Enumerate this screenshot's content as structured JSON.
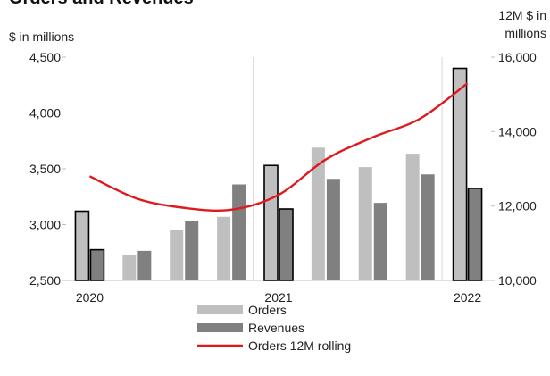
{
  "chart_data": {
    "type": "bar",
    "title": "Orders and Revenues",
    "left_axis_unit": "$ in millions",
    "right_axis_unit_lines": [
      "12M $ in",
      "millions"
    ],
    "ylim": [
      2500,
      4500
    ],
    "yticks": [
      "2,500",
      "3,000",
      "3,500",
      "4,000",
      "4,500"
    ],
    "yticks_values": [
      2500,
      3000,
      3500,
      4000,
      4500
    ],
    "y2lim": [
      10000,
      16000
    ],
    "y2ticks": [
      "10,000",
      "12,000",
      "14,000",
      "16,000"
    ],
    "y2ticks_values": [
      10000,
      12000,
      14000,
      16000
    ],
    "categories": [
      "Q1 2020",
      "Q2 2020",
      "Q3 2020",
      "Q4 2020",
      "Q1 2021",
      "Q2 2021",
      "Q3 2021",
      "Q4 2021",
      "Q1 2022"
    ],
    "xtick_labels": [
      {
        "text": "2020",
        "at": 0
      },
      {
        "text": "2021",
        "at": 4
      },
      {
        "text": "2022",
        "at": 8
      }
    ],
    "highlighted_quarters": [
      0,
      4,
      8
    ],
    "series": [
      {
        "name": "Orders",
        "type": "bar",
        "axis": "left",
        "color": "#bfbfbf",
        "values": [
          3120,
          2730,
          2950,
          3070,
          3530,
          3690,
          3515,
          3635,
          4400
        ]
      },
      {
        "name": "Revenues",
        "type": "bar",
        "axis": "left",
        "color": "#808080",
        "values": [
          2775,
          2765,
          3035,
          3360,
          3140,
          3410,
          3195,
          3450,
          3325
        ]
      },
      {
        "name": "Orders 12M rolling",
        "type": "line",
        "axis": "right",
        "color": "#e0191e",
        "values": [
          12800,
          12200,
          11950,
          11900,
          12300,
          13250,
          13850,
          14350,
          15300
        ]
      }
    ],
    "legend": [
      {
        "name": "Orders",
        "color": "#bfbfbf",
        "kind": "box"
      },
      {
        "name": "Revenues",
        "color": "#808080",
        "kind": "box"
      },
      {
        "name": "Orders 12M rolling",
        "color": "#e0191e",
        "kind": "line"
      }
    ],
    "legend_position": "bottom-center",
    "grid": "vertical year separators"
  }
}
